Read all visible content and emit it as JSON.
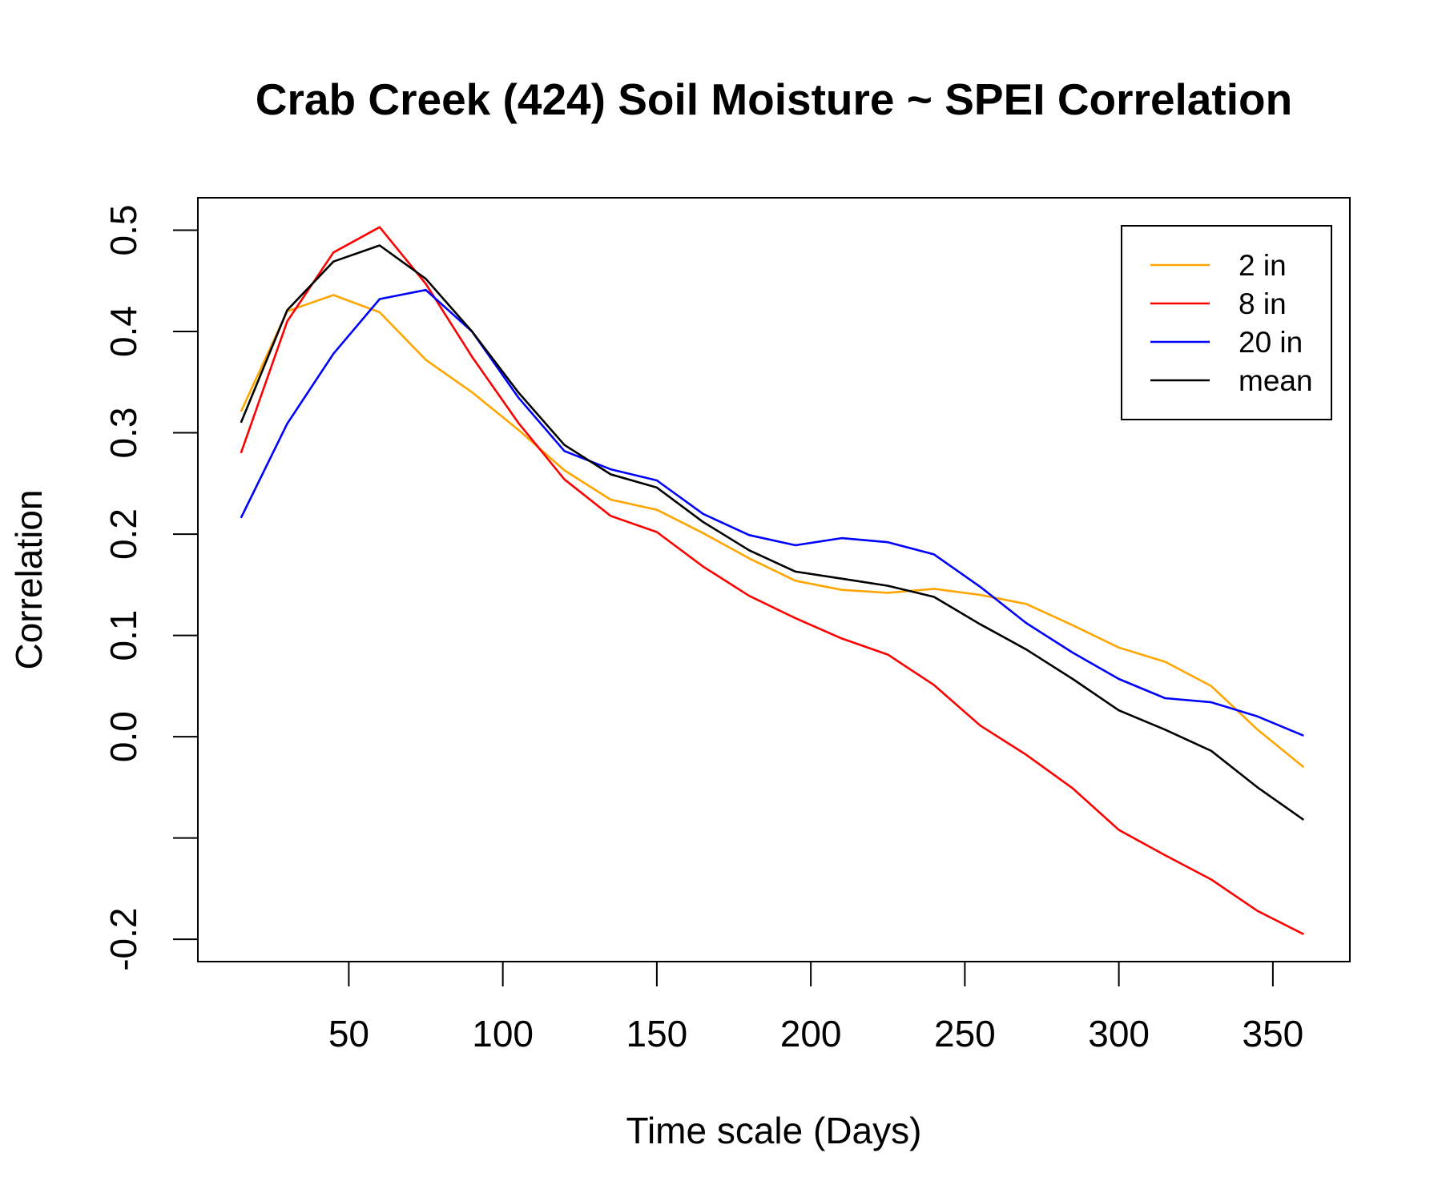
{
  "chart_data": {
    "type": "line",
    "title": "Crab Creek (424) Soil Moisture ~ SPEI Correlation",
    "xlabel": "Time scale (Days)",
    "ylabel": "Correlation",
    "xlim": [
      1,
      375
    ],
    "ylim": [
      -0.222,
      0.532
    ],
    "xticks": [
      50,
      100,
      150,
      200,
      250,
      300,
      350
    ],
    "xtick_labels": [
      "50",
      "100",
      "150",
      "200",
      "250",
      "300",
      "350"
    ],
    "yticks": [
      -0.2,
      -0.1,
      0.0,
      0.1,
      0.2,
      0.3,
      0.4,
      0.5
    ],
    "ytick_labels": [
      "-0.2",
      "",
      "0.0",
      "0.1",
      "0.2",
      "0.3",
      "0.4",
      "0.5"
    ],
    "grid": false,
    "legend_position": "top-right",
    "x": [
      15,
      30,
      45,
      60,
      75,
      90,
      105,
      120,
      135,
      150,
      165,
      180,
      195,
      210,
      225,
      240,
      255,
      270,
      285,
      300,
      315,
      330,
      345,
      360
    ],
    "series": [
      {
        "name": "2 in",
        "color": "#FFA500",
        "values": [
          0.321,
          0.42,
          0.436,
          0.419,
          0.372,
          0.34,
          0.303,
          0.263,
          0.234,
          0.224,
          0.201,
          0.176,
          0.154,
          0.145,
          0.142,
          0.146,
          0.14,
          0.131,
          0.11,
          0.088,
          0.074,
          0.05,
          0.007,
          -0.03
        ]
      },
      {
        "name": "8 in",
        "color": "#FF0000",
        "values": [
          0.28,
          0.41,
          0.478,
          0.503,
          0.447,
          0.375,
          0.31,
          0.254,
          0.218,
          0.202,
          0.168,
          0.139,
          0.117,
          0.097,
          0.081,
          0.051,
          0.011,
          -0.018,
          -0.051,
          -0.092,
          -0.117,
          -0.141,
          -0.172,
          -0.195
        ]
      },
      {
        "name": "20 in",
        "color": "#0000FF",
        "values": [
          0.216,
          0.309,
          0.378,
          0.432,
          0.441,
          0.4,
          0.335,
          0.282,
          0.264,
          0.253,
          0.22,
          0.199,
          0.189,
          0.196,
          0.192,
          0.18,
          0.148,
          0.112,
          0.083,
          0.057,
          0.038,
          0.034,
          0.02,
          0.001
        ]
      },
      {
        "name": "mean",
        "color": "#000000",
        "values": [
          0.31,
          0.421,
          0.469,
          0.485,
          0.452,
          0.4,
          0.34,
          0.288,
          0.259,
          0.246,
          0.212,
          0.184,
          0.163,
          0.156,
          0.149,
          0.138,
          0.111,
          0.086,
          0.057,
          0.026,
          0.007,
          -0.014,
          -0.05,
          -0.082
        ]
      }
    ]
  }
}
